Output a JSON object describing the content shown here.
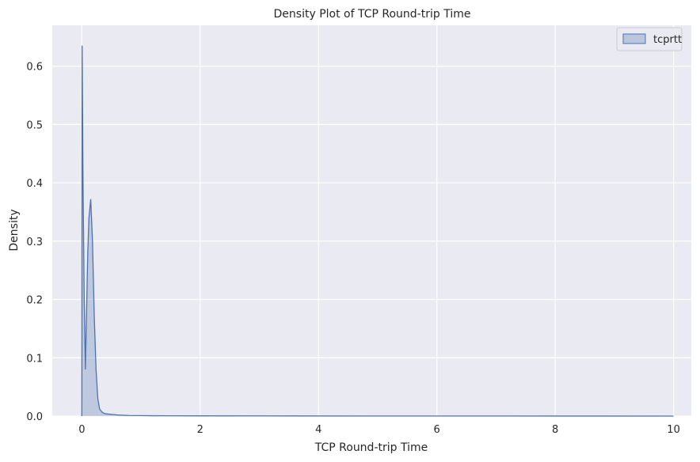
{
  "chart_data": {
    "type": "area",
    "title": "Density Plot of TCP Round-trip Time",
    "xlabel": "TCP Round-trip Time",
    "ylabel": "Density",
    "xlim": [
      -0.5,
      10.3
    ],
    "ylim": [
      0,
      0.67
    ],
    "x_ticks": [
      0,
      2,
      4,
      6,
      8,
      10
    ],
    "x_tick_labels": [
      "0",
      "2",
      "4",
      "6",
      "8",
      "10"
    ],
    "y_ticks": [
      0,
      0.1,
      0.2,
      0.3,
      0.4,
      0.5,
      0.6
    ],
    "y_tick_labels": [
      "0.0",
      "0.1",
      "0.2",
      "0.3",
      "0.4",
      "0.5",
      "0.6"
    ],
    "grid": true,
    "legend_position": "top-right",
    "colors": {
      "background": "#eaeaf2",
      "grid": "#ffffff",
      "line": "#4c72b0",
      "fill": "#4c72b0"
    },
    "series": [
      {
        "name": "tcprtt",
        "x": [
          0,
          0.005,
          0.02,
          0.04,
          0.06,
          0.08,
          0.1,
          0.12,
          0.15,
          0.18,
          0.21,
          0.24,
          0.27,
          0.3,
          0.35,
          0.4,
          0.5,
          0.6,
          0.7,
          0.8,
          1.0,
          1.2,
          1.5,
          2.0,
          3.0,
          5.0,
          8.0,
          10.0
        ],
        "y": [
          0,
          0.635,
          0.4,
          0.2,
          0.08,
          0.18,
          0.28,
          0.34,
          0.372,
          0.3,
          0.17,
          0.08,
          0.03,
          0.012,
          0.006,
          0.004,
          0.003,
          0.002,
          0.0015,
          0.001,
          0.0008,
          0.0006,
          0.0005,
          0.0004,
          0.0003,
          0.0002,
          0.0001,
          0.0
        ]
      }
    ]
  }
}
